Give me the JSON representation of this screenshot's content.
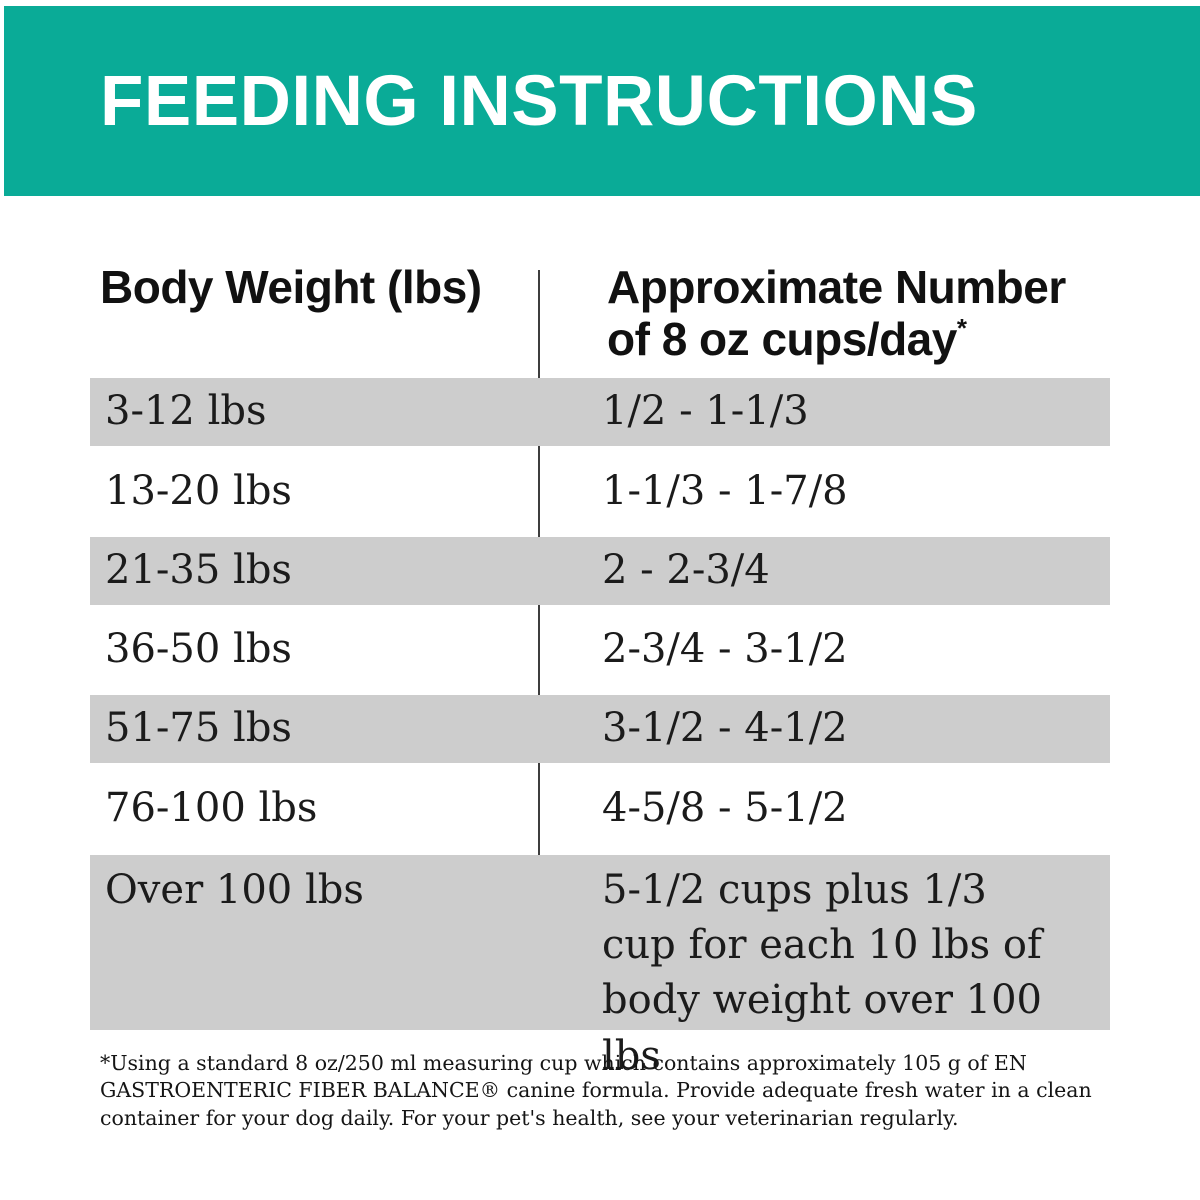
{
  "banner": {
    "title": "FEEDING INSTRUCTIONS"
  },
  "table": {
    "col1_header": "Body Weight (lbs)",
    "col2_header_line1": "Approximate Number",
    "col2_header_line2": "of 8 oz cups/day",
    "col2_header_footnote_marker": "*",
    "rows": [
      {
        "weight": "3-12 lbs",
        "cups": "1/2 - 1-1/3"
      },
      {
        "weight": "13-20 lbs",
        "cups": "1-1/3 - 1-7/8"
      },
      {
        "weight": "21-35 lbs",
        "cups": "2 - 2-3/4"
      },
      {
        "weight": "36-50 lbs",
        "cups": "2-3/4 - 3-1/2"
      },
      {
        "weight": "51-75 lbs",
        "cups": "3-1/2 - 4-1/2"
      },
      {
        "weight": "76-100 lbs",
        "cups": "4-5/8 - 5-1/2"
      },
      {
        "weight": "Over 100 lbs",
        "cups": "5-1/2 cups plus 1/3 cup for each 10 lbs of body weight over 100 lbs"
      }
    ]
  },
  "footnote": "*Using a standard 8 oz/250 ml measuring cup which contains approximately 105 g of EN GASTROENTERIC FIBER BALANCE® canine formula. Provide adequate fresh water in a clean container for your dog daily. For your pet's health, see your veterinarian regularly.",
  "colors": {
    "accent_teal": "#0aab97",
    "row_shade": "#cdcdcd",
    "divider": "#3d3d3d",
    "text": "#1b1b1b"
  }
}
